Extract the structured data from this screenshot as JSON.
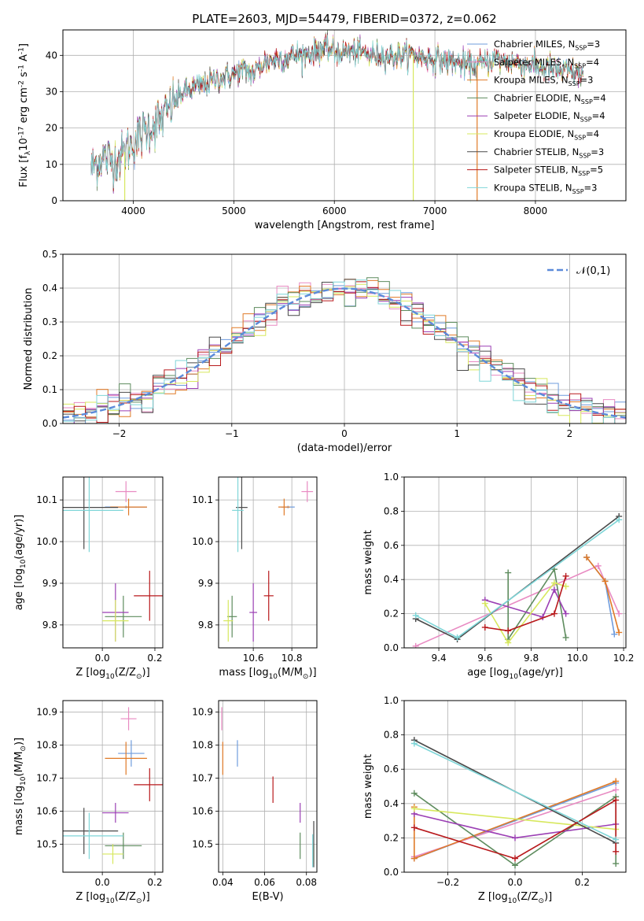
{
  "figure": {
    "title": "PLATE=2603, MJD=54479, FIBERID=0372, z=0.062"
  },
  "colors": {
    "Chabrier MILES": "#6f9cdd",
    "Salpeter MILES": "#e88ac2",
    "Kroupa MILES": "#e07a27",
    "Chabrier ELODIE": "#5e8c5e",
    "Salpeter ELODIE": "#9b3fb4",
    "Kroupa ELODIE": "#d7e85e",
    "Chabrier STELIB": "#4a4a4a",
    "Salpeter STELIB": "#b8191c",
    "Kroupa STELIB": "#7fd6d8",
    "gauss": "#5b8ad9",
    "grid": "#b0b0b0"
  },
  "chart_data": [
    {
      "id": "spectrum",
      "type": "line",
      "xlabel": "wavelength [Angstrom, rest frame]",
      "ylabel": "Flux [f$_\\lambda$10$^{-17}$ erg cm$^{-2}$ s$^{-1}$ A$^{-1}$]",
      "xlim": [
        3300,
        8900
      ],
      "ylim": [
        0,
        47
      ],
      "xticks": [
        4000,
        5000,
        6000,
        7000,
        8000
      ],
      "yticks": [
        0,
        10,
        20,
        30,
        40
      ],
      "legend_position": "top-right",
      "legend": [
        {
          "name": "Chabrier MILES",
          "nssp": "3"
        },
        {
          "name": "Salpeter MILES",
          "nssp": "4"
        },
        {
          "name": "Kroupa MILES",
          "nssp": "3"
        },
        {
          "name": "Chabrier ELODIE",
          "nssp": "4"
        },
        {
          "name": "Salpeter ELODIE",
          "nssp": "4"
        },
        {
          "name": "Kroupa ELODIE",
          "nssp": "4"
        },
        {
          "name": "Chabrier STELIB",
          "nssp": "3"
        },
        {
          "name": "Salpeter STELIB",
          "nssp": "5"
        },
        {
          "name": "Kroupa STELIB",
          "nssp": "3"
        }
      ],
      "continuum": {
        "x": [
          3580,
          3700,
          3800,
          3900,
          4000,
          4100,
          4200,
          4300,
          4400,
          4500,
          4600,
          4700,
          4800,
          4900,
          5000,
          5100,
          5200,
          5300,
          5400,
          5500,
          5600,
          5700,
          5800,
          5900,
          6000,
          6200,
          6400,
          6600,
          6800,
          7000,
          7200,
          7400,
          7600,
          7800,
          8000,
          8200,
          8400
        ],
        "y": [
          9,
          12,
          11,
          13,
          16,
          19,
          21,
          23,
          27,
          30,
          31,
          32,
          33,
          34,
          35,
          36,
          35,
          38,
          39,
          39,
          40,
          40,
          41,
          42,
          41,
          41,
          40,
          40,
          40,
          39,
          38,
          37,
          39,
          38,
          37,
          36,
          35
        ]
      },
      "spikes": [
        {
          "x": 3915,
          "y_low": 0,
          "color_key": "Kroupa ELODIE"
        },
        {
          "x": 6785,
          "y_low": 0,
          "color_key": "Kroupa ELODIE"
        },
        {
          "x": 7420,
          "y_low": 0,
          "color_key": "Kroupa MILES"
        },
        {
          "x": 5900,
          "y_low": 40,
          "color_key": "Chabrier STELIB"
        }
      ]
    },
    {
      "id": "residual-histogram",
      "type": "step-histogram",
      "xlabel": "(data-model)/error",
      "ylabel": "Normed distribution",
      "xlim": [
        -2.5,
        2.5
      ],
      "ylim": [
        0,
        0.5
      ],
      "xticks": [
        -2,
        -1,
        0,
        1,
        2
      ],
      "yticks": [
        0,
        0.1,
        0.2,
        0.3,
        0.4,
        0.5
      ],
      "bin_width": 0.1,
      "gaussian": {
        "label": "$\\mathcal{N}(0,1)$",
        "mean": 0,
        "sigma": 1,
        "style": "dashed"
      },
      "legend_position": "top-right"
    },
    {
      "id": "age-vs-Z",
      "type": "errorbar",
      "xlabel": "Z [log$_{10}$(Z/Z$_\\odot$)]",
      "ylabel": "age  [log$_{10}$(age/yr)]",
      "xlim": [
        -0.15,
        0.23
      ],
      "ylim": [
        9.745,
        10.155
      ],
      "xticks": [
        0.0,
        0.2
      ],
      "yticks": [
        9.8,
        9.9,
        10.0,
        10.1
      ],
      "points": [
        {
          "model": "Chabrier MILES",
          "x": 0.09,
          "xerr": 0.08,
          "y": 10.083,
          "yerr": 0.003
        },
        {
          "model": "Salpeter MILES",
          "x": 0.09,
          "xerr": 0.04,
          "y": 10.12,
          "yerr": 0.025
        },
        {
          "model": "Kroupa MILES",
          "x": 0.1,
          "xerr": 0.07,
          "y": 10.083,
          "yerr": 0.02
        },
        {
          "model": "Chabrier ELODIE",
          "x": 0.08,
          "xerr": 0.07,
          "y": 9.82,
          "yerr": 0.05
        },
        {
          "model": "Salpeter ELODIE",
          "x": 0.05,
          "xerr": 0.05,
          "y": 9.83,
          "yerr": 0.07
        },
        {
          "model": "Kroupa ELODIE",
          "x": 0.05,
          "xerr": 0.05,
          "y": 9.81,
          "yerr": 0.05
        },
        {
          "model": "Chabrier STELIB",
          "x": -0.07,
          "xerr": 0.13,
          "y": 10.082,
          "yerr": 0.1
        },
        {
          "model": "Salpeter STELIB",
          "x": 0.18,
          "xerr": 0.06,
          "y": 9.87,
          "yerr": 0.06
        },
        {
          "model": "Kroupa STELIB",
          "x": -0.05,
          "xerr": 0.13,
          "y": 10.075,
          "yerr": 0.1
        }
      ]
    },
    {
      "id": "age-vs-mass",
      "type": "errorbar",
      "xlabel": "mass [log$_{10}$(M/M$_\\odot$)]",
      "ylabel": "",
      "xlim": [
        10.42,
        10.93
      ],
      "ylim": [
        9.745,
        10.155
      ],
      "xticks": [
        10.6,
        10.8
      ],
      "yticks": [
        9.8,
        9.9,
        10.0,
        10.1
      ],
      "points": [
        {
          "model": "Chabrier MILES",
          "x": 10.78,
          "xerr": 0.035,
          "y": 10.083,
          "yerr": 0.003
        },
        {
          "model": "Salpeter MILES",
          "x": 10.88,
          "xerr": 0.03,
          "y": 10.12,
          "yerr": 0.025
        },
        {
          "model": "Kroupa MILES",
          "x": 10.76,
          "xerr": 0.03,
          "y": 10.083,
          "yerr": 0.02
        },
        {
          "model": "Chabrier ELODIE",
          "x": 10.49,
          "xerr": 0.025,
          "y": 9.82,
          "yerr": 0.05
        },
        {
          "model": "Salpeter ELODIE",
          "x": 10.6,
          "xerr": 0.02,
          "y": 9.83,
          "yerr": 0.07
        },
        {
          "model": "Kroupa ELODIE",
          "x": 10.47,
          "xerr": 0.025,
          "y": 9.81,
          "yerr": 0.05
        },
        {
          "model": "Chabrier STELIB",
          "x": 10.54,
          "xerr": 0.03,
          "y": 10.082,
          "yerr": 0.1
        },
        {
          "model": "Salpeter STELIB",
          "x": 10.68,
          "xerr": 0.025,
          "y": 9.87,
          "yerr": 0.06
        },
        {
          "model": "Kroupa STELIB",
          "x": 10.52,
          "xerr": 0.03,
          "y": 10.075,
          "yerr": 0.1
        }
      ]
    },
    {
      "id": "weight-vs-age",
      "type": "line",
      "xlabel": "age  [log$_{10}$(age/yr)]",
      "ylabel": "mass weight",
      "xlim": [
        9.25,
        10.21
      ],
      "ylim": [
        0,
        1.0
      ],
      "xticks": [
        9.4,
        9.6,
        9.8,
        10.0,
        10.2
      ],
      "yticks": [
        0.0,
        0.2,
        0.4,
        0.6,
        0.8,
        1.0
      ],
      "series": [
        {
          "model": "Chabrier MILES",
          "x": [
            10.04,
            10.12,
            10.16
          ],
          "y": [
            0.53,
            0.39,
            0.08
          ]
        },
        {
          "model": "Salpeter MILES",
          "x": [
            9.3,
            10.09,
            10.18
          ],
          "y": [
            0.01,
            0.48,
            0.2
          ]
        },
        {
          "model": "Kroupa MILES",
          "x": [
            10.04,
            10.12,
            10.18
          ],
          "y": [
            0.53,
            0.39,
            0.09
          ]
        },
        {
          "model": "Chabrier ELODIE",
          "x": [
            9.7,
            9.7,
            9.9,
            9.95
          ],
          "y": [
            0.44,
            0.05,
            0.46,
            0.06
          ]
        },
        {
          "model": "Salpeter ELODIE",
          "x": [
            9.6,
            9.85,
            9.9,
            9.95
          ],
          "y": [
            0.28,
            0.18,
            0.34,
            0.2
          ]
        },
        {
          "model": "Kroupa ELODIE",
          "x": [
            9.6,
            9.7,
            9.9,
            9.95
          ],
          "y": [
            0.26,
            0.03,
            0.38,
            0.36
          ]
        },
        {
          "model": "Chabrier STELIB",
          "x": [
            9.3,
            9.48,
            10.18
          ],
          "y": [
            0.17,
            0.05,
            0.77
          ]
        },
        {
          "model": "Salpeter STELIB",
          "x": [
            9.6,
            9.7,
            9.9,
            9.95
          ],
          "y": [
            0.12,
            0.1,
            0.2,
            0.42
          ]
        },
        {
          "model": "Kroupa STELIB",
          "x": [
            9.3,
            9.48,
            10.18
          ],
          "y": [
            0.19,
            0.06,
            0.75
          ]
        }
      ]
    },
    {
      "id": "mass-vs-Z",
      "type": "errorbar",
      "xlabel": "Z [log$_{10}$(Z/Z$_\\odot$)]",
      "ylabel": "mass [log$_{10}$(M/M$_\\odot$)]",
      "xlim": [
        -0.15,
        0.23
      ],
      "ylim": [
        10.415,
        10.935
      ],
      "xticks": [
        0.0,
        0.2
      ],
      "yticks": [
        10.5,
        10.6,
        10.7,
        10.8,
        10.9
      ],
      "points": [
        {
          "model": "Chabrier MILES",
          "x": 0.11,
          "xerr": 0.05,
          "y": 10.775,
          "yerr": 0.04
        },
        {
          "model": "Salpeter MILES",
          "x": 0.1,
          "xerr": 0.03,
          "y": 10.88,
          "yerr": 0.035
        },
        {
          "model": "Kroupa MILES",
          "x": 0.09,
          "xerr": 0.08,
          "y": 10.76,
          "yerr": 0.05
        },
        {
          "model": "Chabrier ELODIE",
          "x": 0.08,
          "xerr": 0.07,
          "y": 10.495,
          "yerr": 0.04
        },
        {
          "model": "Salpeter ELODIE",
          "x": 0.05,
          "xerr": 0.05,
          "y": 10.595,
          "yerr": 0.03
        },
        {
          "model": "Kroupa ELODIE",
          "x": 0.04,
          "xerr": 0.04,
          "y": 10.47,
          "yerr": 0.03
        },
        {
          "model": "Chabrier STELIB",
          "x": -0.07,
          "xerr": 0.13,
          "y": 10.54,
          "yerr": 0.07
        },
        {
          "model": "Salpeter STELIB",
          "x": 0.18,
          "xerr": 0.06,
          "y": 10.68,
          "yerr": 0.05
        },
        {
          "model": "Kroupa STELIB",
          "x": -0.05,
          "xerr": 0.13,
          "y": 10.525,
          "yerr": 0.07
        }
      ]
    },
    {
      "id": "mass-vs-ebv",
      "type": "errorbar",
      "xlabel": "E(B-V)",
      "ylabel": "",
      "xlim": [
        0.038,
        0.085
      ],
      "ylim": [
        10.415,
        10.935
      ],
      "xticks": [
        0.04,
        0.06,
        0.08
      ],
      "yticks": [
        10.5,
        10.6,
        10.7,
        10.8,
        10.9
      ],
      "points": [
        {
          "model": "Chabrier MILES",
          "x": 0.047,
          "xerr": 0,
          "y": 10.775,
          "yerr": 0.04
        },
        {
          "model": "Salpeter MILES",
          "x": 0.0395,
          "xerr": 0,
          "y": 10.88,
          "yerr": 0.035
        },
        {
          "model": "Kroupa MILES",
          "x": 0.04,
          "xerr": 0,
          "y": 10.76,
          "yerr": 0.05
        },
        {
          "model": "Chabrier ELODIE",
          "x": 0.077,
          "xerr": 0,
          "y": 10.495,
          "yerr": 0.04
        },
        {
          "model": "Salpeter ELODIE",
          "x": 0.077,
          "xerr": 0,
          "y": 10.595,
          "yerr": 0.03
        },
        {
          "model": "Kroupa ELODIE",
          "x": 0.0835,
          "xerr": 0,
          "y": 10.47,
          "yerr": 0.03
        },
        {
          "model": "Chabrier STELIB",
          "x": 0.0835,
          "xerr": 0,
          "y": 10.5,
          "yerr": 0.07
        },
        {
          "model": "Salpeter STELIB",
          "x": 0.064,
          "xerr": 0,
          "y": 10.665,
          "yerr": 0.04
        },
        {
          "model": "Kroupa STELIB",
          "x": 0.083,
          "xerr": 0,
          "y": 10.48,
          "yerr": 0.05
        }
      ]
    },
    {
      "id": "weight-vs-Z",
      "type": "line",
      "xlabel": "Z [log$_{10}$(Z/Z$_\\odot$)]",
      "ylabel": "mass weight",
      "xlim": [
        -0.33,
        0.33
      ],
      "ylim": [
        0,
        1.0
      ],
      "xticks": [
        -0.2,
        0.0,
        0.2
      ],
      "yticks": [
        0.0,
        0.2,
        0.4,
        0.6,
        0.8,
        1.0
      ],
      "series": [
        {
          "model": "Chabrier MILES",
          "x": [
            -0.3,
            0.3
          ],
          "y": [
            0.08,
            0.52
          ]
        },
        {
          "model": "Salpeter MILES",
          "x": [
            -0.3,
            0.3
          ],
          "y": [
            0.09,
            0.48
          ]
        },
        {
          "model": "Kroupa MILES",
          "x": [
            -0.3,
            -0.3,
            0.3
          ],
          "y": [
            0.38,
            0.08,
            0.53
          ]
        },
        {
          "model": "Chabrier ELODIE",
          "x": [
            -0.3,
            0.0,
            0.3,
            0.3
          ],
          "y": [
            0.46,
            0.04,
            0.44,
            0.05
          ]
        },
        {
          "model": "Salpeter ELODIE",
          "x": [
            -0.3,
            0.0,
            0.3
          ],
          "y": [
            0.34,
            0.2,
            0.28
          ]
        },
        {
          "model": "Kroupa ELODIE",
          "x": [
            -0.3,
            0.3
          ],
          "y": [
            0.37,
            0.25
          ]
        },
        {
          "model": "Chabrier STELIB",
          "x": [
            -0.3,
            0.3
          ],
          "y": [
            0.77,
            0.17
          ]
        },
        {
          "model": "Salpeter STELIB",
          "x": [
            -0.3,
            0.0,
            0.3,
            0.3
          ],
          "y": [
            0.26,
            0.08,
            0.42,
            0.12
          ]
        },
        {
          "model": "Kroupa STELIB",
          "x": [
            -0.3,
            0.3
          ],
          "y": [
            0.75,
            0.19
          ]
        }
      ]
    }
  ]
}
